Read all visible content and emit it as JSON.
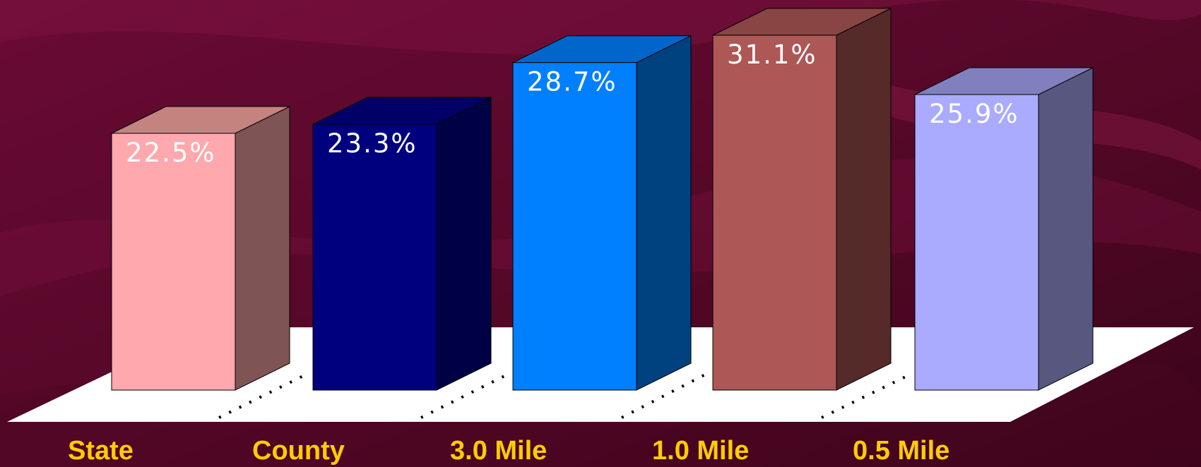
{
  "colors": {
    "background": "#5a0a2c",
    "category_label": "#ffcc00",
    "value_label": "#ffffff",
    "floor": "#ffffff"
  },
  "chart_data": {
    "type": "bar",
    "style": "3d",
    "categories": [
      "State",
      "County",
      "3.0 Mile",
      "1.0 Mile",
      "0.5 Mile"
    ],
    "values": [
      22.5,
      23.3,
      28.7,
      31.1,
      25.9
    ],
    "value_labels": [
      "22.5%",
      "23.3%",
      "28.7%",
      "31.1%",
      "25.9%"
    ],
    "bar_colors": [
      {
        "front": "#ffa8ad",
        "side": "#7e5454",
        "top": "#c4837f"
      },
      {
        "front": "#00007f",
        "side": "#000046",
        "top": "#000066"
      },
      {
        "front": "#007fff",
        "side": "#00427f",
        "top": "#0066cc"
      },
      {
        "front": "#ad5756",
        "side": "#572a2a",
        "top": "#894444"
      },
      {
        "front": "#aaaaff",
        "side": "#575780",
        "top": "#8080bf"
      }
    ],
    "title": "",
    "xlabel": "",
    "ylabel": "",
    "ylim": [
      0,
      33
    ],
    "grid": false,
    "legend": "none"
  }
}
